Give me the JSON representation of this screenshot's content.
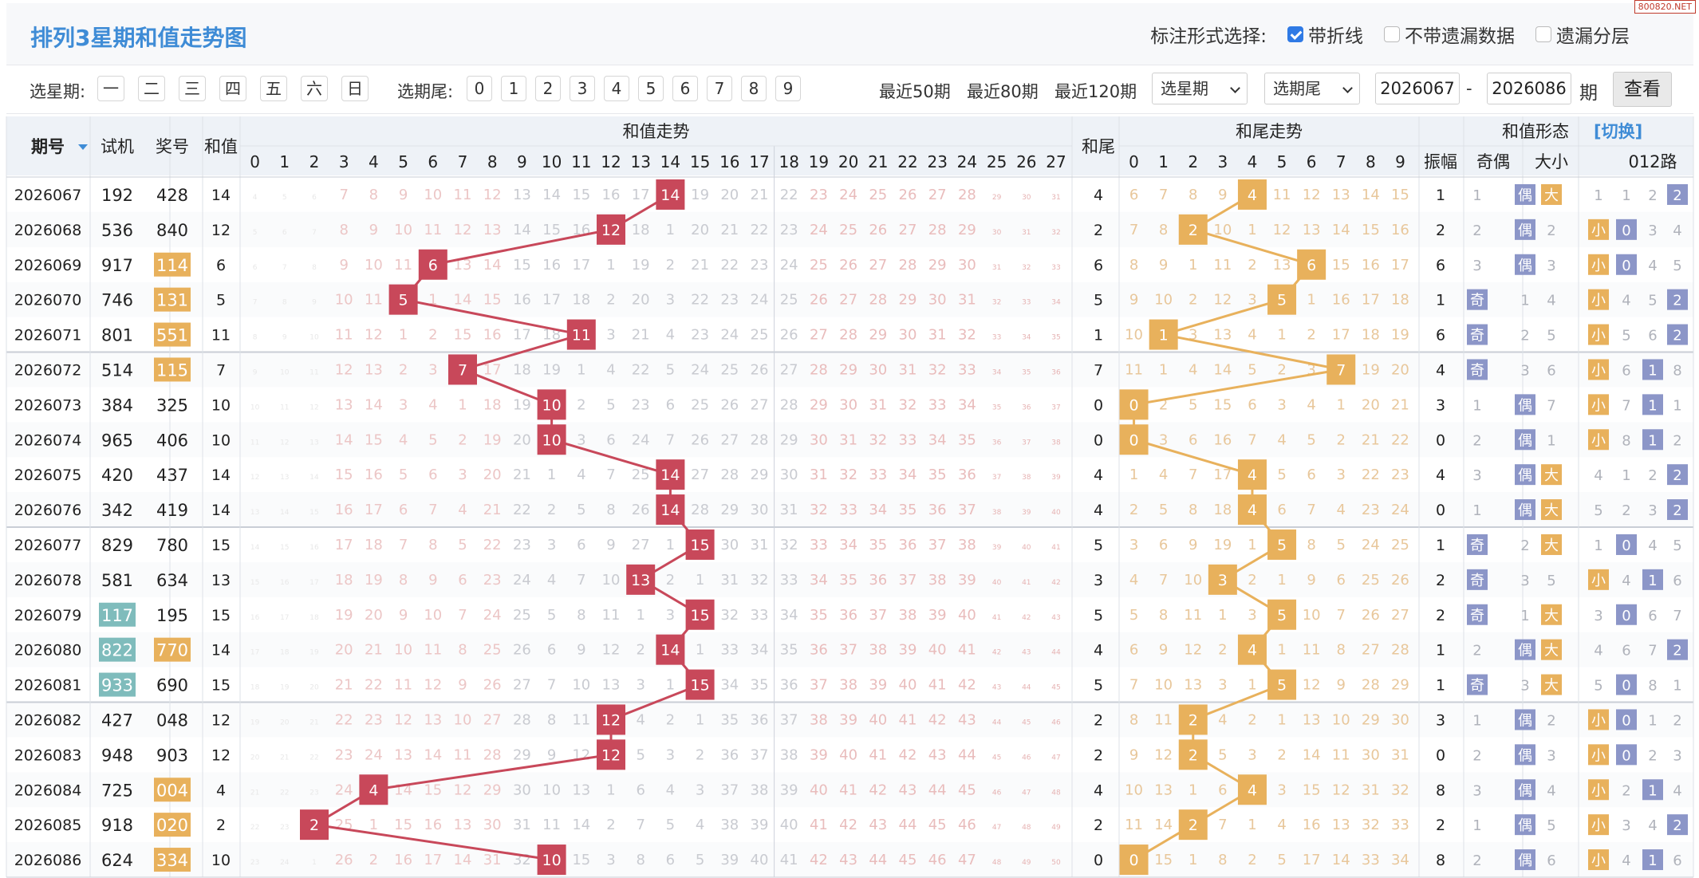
{
  "title": "排列3星期和值走势图",
  "watermark": "800820.NET",
  "mark": {
    "label": "标注形式选择:",
    "options": [
      {
        "label": "带折线",
        "checked": true
      },
      {
        "label": "不带遗漏数据",
        "checked": false
      },
      {
        "label": "遗漏分层",
        "checked": false
      }
    ]
  },
  "filter": {
    "week_label": "选星期:",
    "week_days": [
      "一",
      "二",
      "三",
      "四",
      "五",
      "六",
      "日"
    ],
    "tail_label": "选期尾:",
    "tails": [
      "0",
      "1",
      "2",
      "3",
      "4",
      "5",
      "6",
      "7",
      "8",
      "9"
    ],
    "recent": [
      "最近50期",
      "最近80期",
      "最近120期"
    ],
    "week_select": "选星期",
    "tail_select": "选期尾",
    "from": "2026067",
    "dash": "-",
    "to": "2026086",
    "period": "期",
    "query": "查看"
  },
  "header": {
    "issue": "期号",
    "trial": "试机",
    "prize": "奖号",
    "sum": "和值",
    "sum_trend": "和值走势",
    "sum_tail": "和尾",
    "tail_trend": "和尾走势",
    "form": "和值形态",
    "switch": "[切换]",
    "amplitude": "振幅",
    "odd_even": "奇偶",
    "big_small": "大小",
    "route": "012路",
    "sum_cols": [
      "0",
      "1",
      "2",
      "3",
      "4",
      "5",
      "6",
      "7",
      "8",
      "9",
      "10",
      "11",
      "12",
      "13",
      "14",
      "15",
      "16",
      "17",
      "18",
      "19",
      "20",
      "21",
      "22",
      "23",
      "24",
      "25",
      "26",
      "27"
    ],
    "tail_cols": [
      "0",
      "1",
      "2",
      "3",
      "4",
      "5",
      "6",
      "7",
      "8",
      "9"
    ],
    "odd": "奇",
    "even": "偶",
    "big": "大",
    "small": "小",
    "r0": "0",
    "r1": "1",
    "r2": "2"
  },
  "rows": [
    {
      "issue": "2026067",
      "trial": "192",
      "prize": "428",
      "sum": 14,
      "tail": 4,
      "amp": 1,
      "trial_hl": false,
      "prize_hl": false
    },
    {
      "issue": "2026068",
      "trial": "536",
      "prize": "840",
      "sum": 12,
      "tail": 2,
      "amp": 2,
      "trial_hl": false,
      "prize_hl": false
    },
    {
      "issue": "2026069",
      "trial": "917",
      "prize": "114",
      "sum": 6,
      "tail": 6,
      "amp": 6,
      "trial_hl": false,
      "prize_hl": true
    },
    {
      "issue": "2026070",
      "trial": "746",
      "prize": "131",
      "sum": 5,
      "tail": 5,
      "amp": 1,
      "trial_hl": false,
      "prize_hl": true
    },
    {
      "issue": "2026071",
      "trial": "801",
      "prize": "551",
      "sum": 11,
      "tail": 1,
      "amp": 6,
      "trial_hl": false,
      "prize_hl": true
    },
    {
      "issue": "2026072",
      "trial": "514",
      "prize": "115",
      "sum": 7,
      "tail": 7,
      "amp": 4,
      "trial_hl": false,
      "prize_hl": true
    },
    {
      "issue": "2026073",
      "trial": "384",
      "prize": "325",
      "sum": 10,
      "tail": 0,
      "amp": 3,
      "trial_hl": false,
      "prize_hl": false
    },
    {
      "issue": "2026074",
      "trial": "965",
      "prize": "406",
      "sum": 10,
      "tail": 0,
      "amp": 0,
      "trial_hl": false,
      "prize_hl": false
    },
    {
      "issue": "2026075",
      "trial": "420",
      "prize": "437",
      "sum": 14,
      "tail": 4,
      "amp": 4,
      "trial_hl": false,
      "prize_hl": false
    },
    {
      "issue": "2026076",
      "trial": "342",
      "prize": "419",
      "sum": 14,
      "tail": 4,
      "amp": 0,
      "trial_hl": false,
      "prize_hl": false
    },
    {
      "issue": "2026077",
      "trial": "829",
      "prize": "780",
      "sum": 15,
      "tail": 5,
      "amp": 1,
      "trial_hl": false,
      "prize_hl": false
    },
    {
      "issue": "2026078",
      "trial": "581",
      "prize": "634",
      "sum": 13,
      "tail": 3,
      "amp": 2,
      "trial_hl": false,
      "prize_hl": false
    },
    {
      "issue": "2026079",
      "trial": "117",
      "prize": "195",
      "sum": 15,
      "tail": 5,
      "amp": 2,
      "trial_hl": true,
      "prize_hl": false
    },
    {
      "issue": "2026080",
      "trial": "822",
      "prize": "770",
      "sum": 14,
      "tail": 4,
      "amp": 1,
      "trial_hl": true,
      "prize_hl": true
    },
    {
      "issue": "2026081",
      "trial": "933",
      "prize": "690",
      "sum": 15,
      "tail": 5,
      "amp": 1,
      "trial_hl": true,
      "prize_hl": false
    },
    {
      "issue": "2026082",
      "trial": "427",
      "prize": "048",
      "sum": 12,
      "tail": 2,
      "amp": 3,
      "trial_hl": false,
      "prize_hl": false
    },
    {
      "issue": "2026083",
      "trial": "948",
      "prize": "903",
      "sum": 12,
      "tail": 2,
      "amp": 0,
      "trial_hl": false,
      "prize_hl": false
    },
    {
      "issue": "2026084",
      "trial": "725",
      "prize": "004",
      "sum": 4,
      "tail": 4,
      "amp": 8,
      "trial_hl": false,
      "prize_hl": true
    },
    {
      "issue": "2026085",
      "trial": "918",
      "prize": "020",
      "sum": 2,
      "tail": 2,
      "amp": 2,
      "trial_hl": false,
      "prize_hl": true
    },
    {
      "issue": "2026086",
      "trial": "624",
      "prize": "334",
      "sum": 10,
      "tail": 0,
      "amp": 8,
      "trial_hl": false,
      "prize_hl": true
    }
  ],
  "colors": {
    "sum_ball": "#c8485a",
    "tail_ball": "#e8b15c",
    "prize_hl": "#e8b15c",
    "trial_hl": "#7fbcbc",
    "form_badge": "#8c96c8",
    "line_sum": "#c8485a",
    "line_tail": "#e8b15c",
    "header_bg": "#eef2f7"
  }
}
